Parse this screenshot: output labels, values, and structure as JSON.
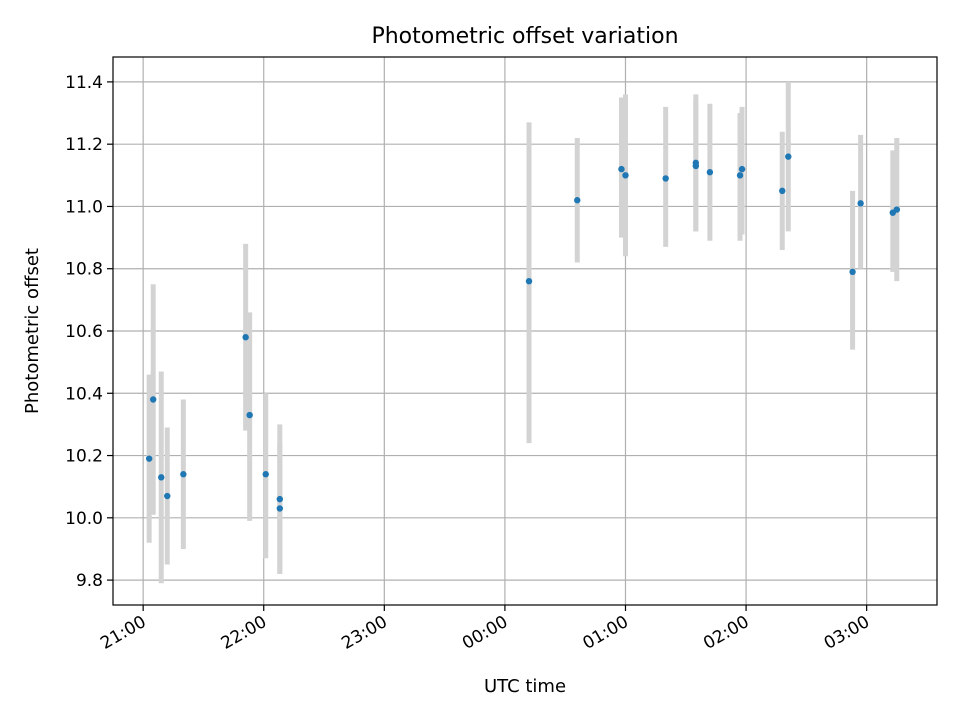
{
  "chart_data": {
    "type": "scatter",
    "title": "Photometric offset variation",
    "xlabel": "UTC time",
    "ylabel": "Photometric offset",
    "xlim": [
      "20:45",
      "03:35"
    ],
    "ylim": [
      9.72,
      11.48
    ],
    "grid": true,
    "legend": "none",
    "x_ticks": [
      "21:00",
      "22:00",
      "23:00",
      "00:00",
      "01:00",
      "02:00",
      "03:00"
    ],
    "y_ticks": [
      "9.8",
      "10.0",
      "10.2",
      "10.4",
      "10.6",
      "10.8",
      "11.0",
      "11.2",
      "11.4"
    ],
    "colors": {
      "point": "#1f77b4",
      "errorbar": "#d3d3d3",
      "grid": "#b0b0b0"
    },
    "points": [
      {
        "time": "21:03",
        "y": 10.19,
        "err_low": 9.92,
        "err_high": 10.46
      },
      {
        "time": "21:05",
        "y": 10.38,
        "err_low": 10.01,
        "err_high": 10.75
      },
      {
        "time": "21:09",
        "y": 10.13,
        "err_low": 9.79,
        "err_high": 10.47
      },
      {
        "time": "21:12",
        "y": 10.07,
        "err_low": 9.85,
        "err_high": 10.29
      },
      {
        "time": "21:20",
        "y": 10.14,
        "err_low": 9.9,
        "err_high": 10.38
      },
      {
        "time": "21:51",
        "y": 10.58,
        "err_low": 10.28,
        "err_high": 10.88
      },
      {
        "time": "21:53",
        "y": 10.33,
        "err_low": 9.99,
        "err_high": 10.66
      },
      {
        "time": "22:01",
        "y": 10.14,
        "err_low": 9.87,
        "err_high": 10.4
      },
      {
        "time": "22:08",
        "y": 10.03,
        "err_low": 9.82,
        "err_high": 10.24
      },
      {
        "time": "22:08",
        "y": 10.06,
        "err_low": 9.82,
        "err_high": 10.3
      },
      {
        "time": "00:12",
        "y": 10.76,
        "err_low": 10.24,
        "err_high": 11.27
      },
      {
        "time": "00:36",
        "y": 11.02,
        "err_low": 10.82,
        "err_high": 11.22
      },
      {
        "time": "00:58",
        "y": 11.12,
        "err_low": 10.9,
        "err_high": 11.35
      },
      {
        "time": "01:00",
        "y": 11.1,
        "err_low": 10.84,
        "err_high": 11.36
      },
      {
        "time": "01:20",
        "y": 11.09,
        "err_low": 10.87,
        "err_high": 11.32
      },
      {
        "time": "01:35",
        "y": 11.13,
        "err_low": 10.92,
        "err_high": 11.36
      },
      {
        "time": "01:35",
        "y": 11.14,
        "err_low": 10.92,
        "err_high": 11.34
      },
      {
        "time": "01:42",
        "y": 11.11,
        "err_low": 10.89,
        "err_high": 11.33
      },
      {
        "time": "01:57",
        "y": 11.1,
        "err_low": 10.89,
        "err_high": 11.3
      },
      {
        "time": "01:58",
        "y": 11.12,
        "err_low": 10.91,
        "err_high": 11.32
      },
      {
        "time": "02:18",
        "y": 11.05,
        "err_low": 10.86,
        "err_high": 11.24
      },
      {
        "time": "02:21",
        "y": 11.16,
        "err_low": 10.92,
        "err_high": 11.4
      },
      {
        "time": "02:53",
        "y": 10.79,
        "err_low": 10.54,
        "err_high": 11.05
      },
      {
        "time": "02:57",
        "y": 11.01,
        "err_low": 10.8,
        "err_high": 11.23
      },
      {
        "time": "03:13",
        "y": 10.98,
        "err_low": 10.79,
        "err_high": 11.18
      },
      {
        "time": "03:15",
        "y": 10.99,
        "err_low": 10.76,
        "err_high": 11.22
      }
    ]
  }
}
